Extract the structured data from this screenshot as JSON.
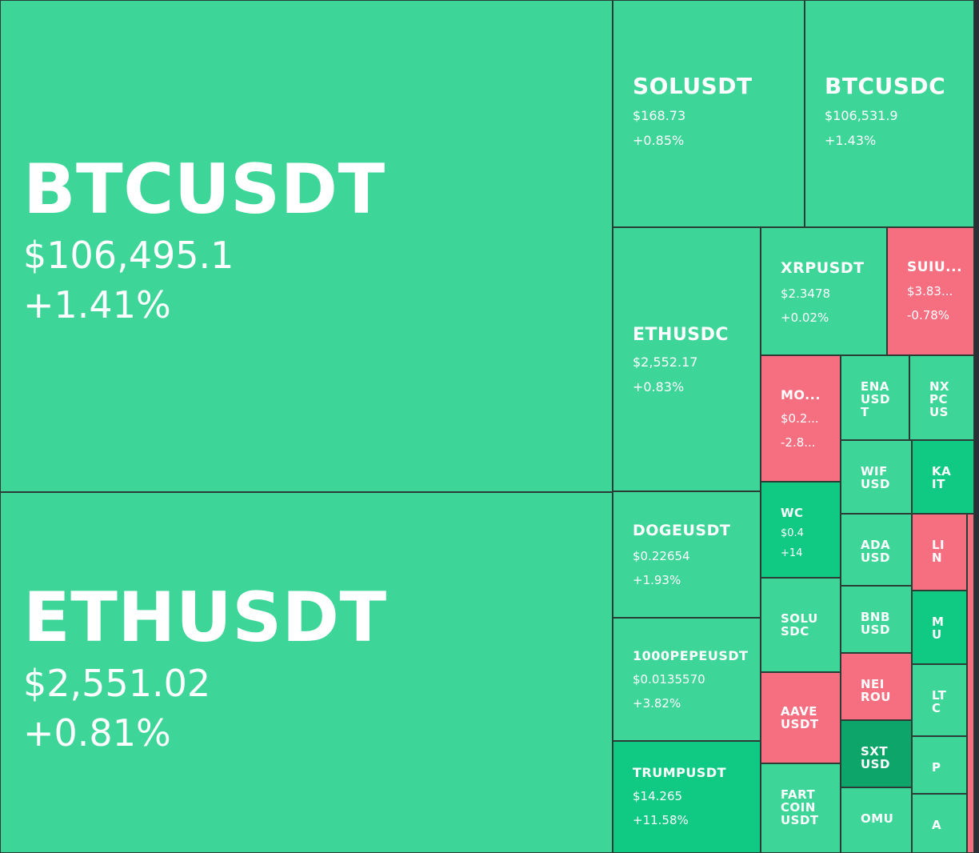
{
  "colors": {
    "up_light": "#3ed598",
    "up_mid": "#10c983",
    "up_strong": "#0ea56b",
    "down": "#f56f81",
    "border": "#2b3b36"
  },
  "tiles": [
    {
      "id": "btcusdt",
      "symbol": "BTCUSDT",
      "price": "$106,495.1",
      "change": "+1.41%",
      "color": "up_light"
    },
    {
      "id": "ethusdt",
      "symbol": "ETHUSDT",
      "price": "$2,551.02",
      "change": "+0.81%",
      "color": "up_light"
    },
    {
      "id": "solusdt",
      "symbol": "SOLUSDT",
      "price": "$168.73",
      "change": "+0.85%",
      "color": "up_light"
    },
    {
      "id": "btcusdc",
      "symbol": "BTCUSDC",
      "price": "$106,531.9",
      "change": "+1.43%",
      "color": "up_light"
    },
    {
      "id": "ethusdc",
      "symbol": "ETHUSDC",
      "price": "$2,552.17",
      "change": "+0.83%",
      "color": "up_light"
    },
    {
      "id": "xrpusdt",
      "symbol": "XRPUSDT",
      "price": "$2.3478",
      "change": "+0.02%",
      "color": "up_light"
    },
    {
      "id": "suiusdt",
      "symbol": "SUIU...",
      "price": "$3.83...",
      "change": "-0.78%",
      "color": "down"
    },
    {
      "id": "mo",
      "symbol": "MO...",
      "price": "$0.2...",
      "change": "-2.8...",
      "color": "down"
    },
    {
      "id": "enausdt",
      "symbol": "ENA USD T",
      "price": "",
      "change": "",
      "color": "up_light"
    },
    {
      "id": "nxpc",
      "symbol": "NX PC US",
      "price": "",
      "change": "",
      "color": "up_light"
    },
    {
      "id": "wifusdt",
      "symbol": "WIF USD",
      "price": "",
      "change": "",
      "color": "up_light"
    },
    {
      "id": "kait",
      "symbol": "KA IT",
      "price": "",
      "change": "",
      "color": "up_mid"
    },
    {
      "id": "wc",
      "symbol": "WC",
      "price": "$0.4",
      "change": "+14",
      "color": "up_mid"
    },
    {
      "id": "adausdt",
      "symbol": "ADA USD",
      "price": "",
      "change": "",
      "color": "up_light"
    },
    {
      "id": "link",
      "symbol": "LI N",
      "price": "",
      "change": "",
      "color": "down"
    },
    {
      "id": "dogeusdt",
      "symbol": "DOGEUSDT",
      "price": "$0.22654",
      "change": "+1.93%",
      "color": "up_light"
    },
    {
      "id": "solusdc",
      "symbol": "SOLU SDC",
      "price": "",
      "change": "",
      "color": "up_light"
    },
    {
      "id": "bnbusdt",
      "symbol": "BNB USD",
      "price": "",
      "change": "",
      "color": "up_light"
    },
    {
      "id": "mu",
      "symbol": "M U",
      "price": "",
      "change": "",
      "color": "up_mid"
    },
    {
      "id": "pepe",
      "symbol": "1000PEPEUSDT",
      "price": "$0.0135570",
      "change": "+3.82%",
      "color": "up_light"
    },
    {
      "id": "aaveusdt",
      "symbol": "AAVE USDT",
      "price": "",
      "change": "",
      "color": "down"
    },
    {
      "id": "neiro",
      "symbol": "NEI ROU",
      "price": "",
      "change": "",
      "color": "down"
    },
    {
      "id": "ltc",
      "symbol": "LT C",
      "price": "",
      "change": "",
      "color": "up_light"
    },
    {
      "id": "sxtusdt",
      "symbol": "SXT USD",
      "price": "",
      "change": "",
      "color": "up_strong"
    },
    {
      "id": "p",
      "symbol": "P",
      "price": "",
      "change": "",
      "color": "up_light"
    },
    {
      "id": "trumpusdt",
      "symbol": "TRUMPUSDT",
      "price": "$14.265",
      "change": "+11.58%",
      "color": "up_mid"
    },
    {
      "id": "fartcoin",
      "symbol": "FART COIN USDT",
      "price": "",
      "change": "",
      "color": "up_light"
    },
    {
      "id": "omusdt",
      "symbol": "OMU",
      "price": "",
      "change": "",
      "color": "up_light"
    },
    {
      "id": "a",
      "symbol": "A",
      "price": "",
      "change": "",
      "color": "up_light"
    },
    {
      "id": "edge_strip",
      "symbol": "",
      "price": "",
      "change": "",
      "color": "down"
    }
  ]
}
